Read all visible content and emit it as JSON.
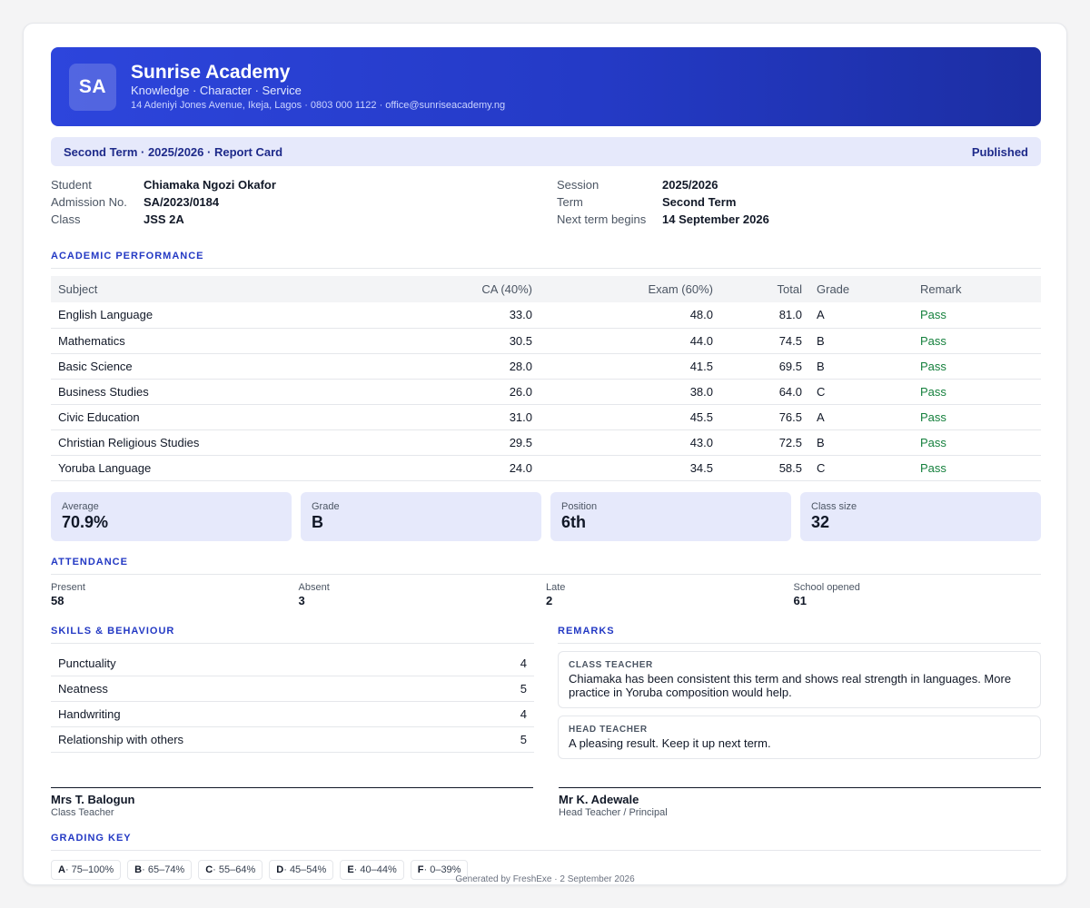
{
  "school": {
    "logo_initials": "SA",
    "name": "Sunrise Academy",
    "motto": "Knowledge · Character · Service",
    "address": "14 Adeniyi Jones Avenue, Ikeja, Lagos · 0803 000 1122 · office@sunriseacademy.ng"
  },
  "term_bar": {
    "title": "Second Term · 2025/2026 · Report Card",
    "status": "Published"
  },
  "student_info": {
    "student_label": "Student",
    "student": "Chiamaka Ngozi Okafor",
    "admission_label": "Admission No.",
    "admission": "SA/2023/0184",
    "class_label": "Class",
    "class": "JSS 2A",
    "session_label": "Session",
    "session": "2025/2026",
    "term_label": "Term",
    "term": "Second Term",
    "next_term_label": "Next term begins",
    "next_term": "14 September 2026"
  },
  "academic": {
    "title": "ACADEMIC PERFORMANCE",
    "headers": [
      "Subject",
      "CA (40%)",
      "Exam (60%)",
      "Total",
      "Grade",
      "Remark"
    ],
    "rows": [
      [
        "English Language",
        "33.0",
        "48.0",
        "81.0",
        "A",
        "Pass"
      ],
      [
        "Mathematics",
        "30.5",
        "44.0",
        "74.5",
        "B",
        "Pass"
      ],
      [
        "Basic Science",
        "28.0",
        "41.5",
        "69.5",
        "B",
        "Pass"
      ],
      [
        "Business Studies",
        "26.0",
        "38.0",
        "64.0",
        "C",
        "Pass"
      ],
      [
        "Civic Education",
        "31.0",
        "45.5",
        "76.5",
        "A",
        "Pass"
      ],
      [
        "Christian Religious Studies",
        "29.5",
        "43.0",
        "72.5",
        "B",
        "Pass"
      ],
      [
        "Yoruba Language",
        "24.0",
        "34.5",
        "58.5",
        "C",
        "Pass"
      ]
    ]
  },
  "summary": [
    {
      "label": "Average",
      "value": "70.9%"
    },
    {
      "label": "Grade",
      "value": "B"
    },
    {
      "label": "Position",
      "value": "6th"
    },
    {
      "label": "Class size",
      "value": "32"
    }
  ],
  "attendance": {
    "title": "ATTENDANCE",
    "items": [
      {
        "label": "Present",
        "value": "58"
      },
      {
        "label": "Absent",
        "value": "3"
      },
      {
        "label": "Late",
        "value": "2"
      },
      {
        "label": "School opened",
        "value": "61"
      }
    ]
  },
  "skills": {
    "title": "SKILLS & BEHAVIOUR",
    "rows": [
      {
        "label": "Punctuality",
        "value": "4"
      },
      {
        "label": "Neatness",
        "value": "5"
      },
      {
        "label": "Handwriting",
        "value": "4"
      },
      {
        "label": "Relationship with others",
        "value": "5"
      }
    ]
  },
  "remarks": {
    "title": "REMARKS",
    "class_teacher_role": "CLASS TEACHER",
    "class_teacher_text": "Chiamaka has been consistent this term and shows real strength in languages. More practice in Yoruba composition would help.",
    "head_teacher_role": "HEAD TEACHER",
    "head_teacher_text": "A pleasing result. Keep it up next term."
  },
  "signatures": [
    {
      "name": "Mrs T. Balogun",
      "role": "Class Teacher"
    },
    {
      "name": "Mr K. Adewale",
      "role": "Head Teacher / Principal"
    }
  ],
  "grading_key": {
    "title": "GRADING KEY",
    "items": [
      {
        "grade": "A",
        "range": " · 75–100%"
      },
      {
        "grade": "B",
        "range": " · 65–74%"
      },
      {
        "grade": "C",
        "range": " · 55–64%"
      },
      {
        "grade": "D",
        "range": " · 45–54%"
      },
      {
        "grade": "E",
        "range": " · 40–44%"
      },
      {
        "grade": "F",
        "range": " · 0–39%"
      }
    ]
  },
  "footer": "Generated by FreshExe · 2 September 2026",
  "colors": {
    "brand": "#2d45dc",
    "brand_dark": "#1c2ea3",
    "accent_tint": "#e6e9fb",
    "pass": "#15803d"
  }
}
